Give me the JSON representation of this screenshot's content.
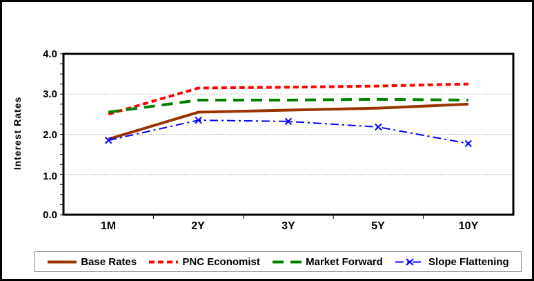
{
  "figure": {
    "background": "#ffffff",
    "outer_border_color": "#000000",
    "plot_border_color": "#000000",
    "gridline_color": "#b3b3b3"
  },
  "chart_data": {
    "type": "line",
    "title": "",
    "xlabel": "",
    "ylabel": "Interest Rates",
    "categories": [
      "1M",
      "2Y",
      "3Y",
      "5Y",
      "10Y"
    ],
    "series": [
      {
        "name": "Base Rates",
        "color": "#993300",
        "dash": "solid",
        "marker": "none",
        "width": 4,
        "values": [
          1.88,
          2.55,
          2.6,
          2.65,
          2.75
        ]
      },
      {
        "name": "PNC Economist",
        "color": "#ff0000",
        "dash": "dash",
        "marker": "none",
        "width": 4,
        "values": [
          2.5,
          3.15,
          3.17,
          3.2,
          3.25
        ]
      },
      {
        "name": "Market Forward",
        "color": "#008000",
        "dash": "longdash",
        "marker": "none",
        "width": 4,
        "values": [
          2.55,
          2.85,
          2.85,
          2.87,
          2.85
        ]
      },
      {
        "name": "Slope Flattening",
        "color": "#0000ff",
        "dash": "dashdot",
        "marker": "x",
        "width": 2,
        "values": [
          1.85,
          2.35,
          2.32,
          2.18,
          1.77
        ]
      }
    ],
    "ylim": [
      0.0,
      4.0
    ],
    "yticks": [
      4.0,
      3.0,
      2.0,
      1.0,
      0.0
    ],
    "ytick_labels": [
      "4.0",
      "3.0",
      "2.0",
      "1.0",
      "0.0"
    ],
    "minor_tick_step": 0.25,
    "gridlines_at": [
      1.0,
      2.0,
      3.0
    ],
    "grid": "horizontal-dotted",
    "legend_position": "bottom"
  }
}
